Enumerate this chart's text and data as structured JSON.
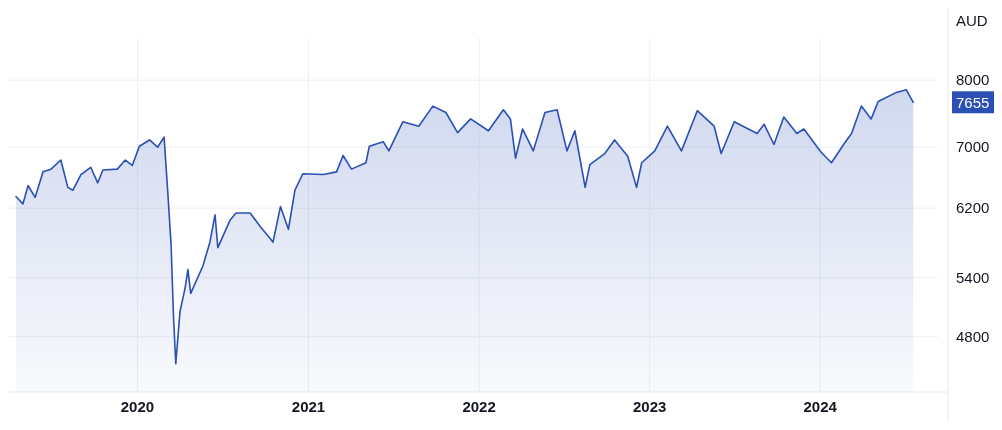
{
  "chart_data": {
    "type": "area",
    "ylabel": "AUD",
    "log": true,
    "grid": true,
    "ylim": [
      4300,
      8700
    ],
    "yticks": [
      4800,
      5400,
      6200,
      7000,
      8000
    ],
    "xlim": [
      "2019-03-30",
      "2024-09-09"
    ],
    "xticks": [
      {
        "value": "2020-01-01",
        "label": "2020"
      },
      {
        "value": "2021-01-01",
        "label": "2021"
      },
      {
        "value": "2022-01-01",
        "label": "2022"
      },
      {
        "value": "2023-01-01",
        "label": "2023"
      },
      {
        "value": "2024-01-01",
        "label": "2024"
      }
    ],
    "annotations": [
      "7655"
    ],
    "series": [
      {
        "color": "#2a4fb5",
        "x": [
          "2019-04-16",
          "2019-05-01",
          "2019-05-12",
          "2019-05-27",
          "2019-06-13",
          "2019-06-30",
          "2019-07-21",
          "2019-08-05",
          "2019-08-16",
          "2019-09-02",
          "2019-09-23",
          "2019-10-08",
          "2019-10-19",
          "2019-11-19",
          "2019-12-06",
          "2019-12-21",
          "2020-01-05",
          "2020-01-27",
          "2020-02-13",
          "2020-02-27",
          "2020-03-06",
          "2020-03-13",
          "2020-03-18",
          "2020-03-23",
          "2020-04-01",
          "2020-04-12",
          "2020-04-18",
          "2020-04-24",
          "2020-05-20",
          "2020-06-04",
          "2020-06-15",
          "2020-06-21",
          "2020-07-17",
          "2020-07-30",
          "2020-08-29",
          "2020-09-20",
          "2020-10-11",
          "2020-10-17",
          "2020-11-02",
          "2020-11-19",
          "2020-12-03",
          "2020-12-20",
          "2021-02-02",
          "2021-03-02",
          "2021-03-16",
          "2021-04-03",
          "2021-05-04",
          "2021-05-11",
          "2021-06-10",
          "2021-06-22",
          "2021-07-22",
          "2021-08-25",
          "2021-09-24",
          "2021-10-22",
          "2021-11-16",
          "2021-12-14",
          "2022-01-21",
          "2022-02-22",
          "2022-03-09",
          "2022-03-20",
          "2022-04-04",
          "2022-04-27",
          "2022-05-22",
          "2022-06-17",
          "2022-07-08",
          "2022-07-25",
          "2022-08-16",
          "2022-08-26",
          "2022-09-27",
          "2022-10-18",
          "2022-11-15",
          "2022-12-04",
          "2022-12-15",
          "2023-01-12",
          "2023-02-08",
          "2023-03-10",
          "2023-04-13",
          "2023-05-19",
          "2023-06-03",
          "2023-07-01",
          "2023-08-19",
          "2023-09-03",
          "2023-09-24",
          "2023-10-15",
          "2023-11-12",
          "2023-11-27",
          "2024-01-02",
          "2024-01-25",
          "2024-02-20",
          "2024-03-08",
          "2024-03-29",
          "2024-04-19",
          "2024-05-04",
          "2024-06-12",
          "2024-07-03",
          "2024-07-18"
        ],
        "values": [
          6345,
          6254,
          6486,
          6334,
          6665,
          6701,
          6824,
          6462,
          6426,
          6629,
          6726,
          6521,
          6689,
          6701,
          6824,
          6750,
          7013,
          7102,
          7000,
          7141,
          6392,
          5763,
          5010,
          4550,
          5046,
          5291,
          5487,
          5233,
          5526,
          5794,
          6119,
          5731,
          6052,
          6141,
          6141,
          5976,
          5837,
          5794,
          6220,
          5944,
          6426,
          6640,
          6629,
          6665,
          6886,
          6701,
          6787,
          7013,
          7077,
          6949,
          7365,
          7299,
          7597,
          7501,
          7206,
          7406,
          7233,
          7542,
          7406,
          6850,
          7259,
          6949,
          7501,
          7542,
          6949,
          7233,
          6462,
          6762,
          6912,
          7102,
          6874,
          6462,
          6787,
          6949,
          7299,
          6949,
          7528,
          7299,
          6912,
          7365,
          7194,
          7326,
          7038,
          7433,
          7194,
          7259,
          6937,
          6787,
          7038,
          7194,
          7597,
          7406,
          7666,
          7807,
          7849,
          7655
        ]
      }
    ]
  }
}
